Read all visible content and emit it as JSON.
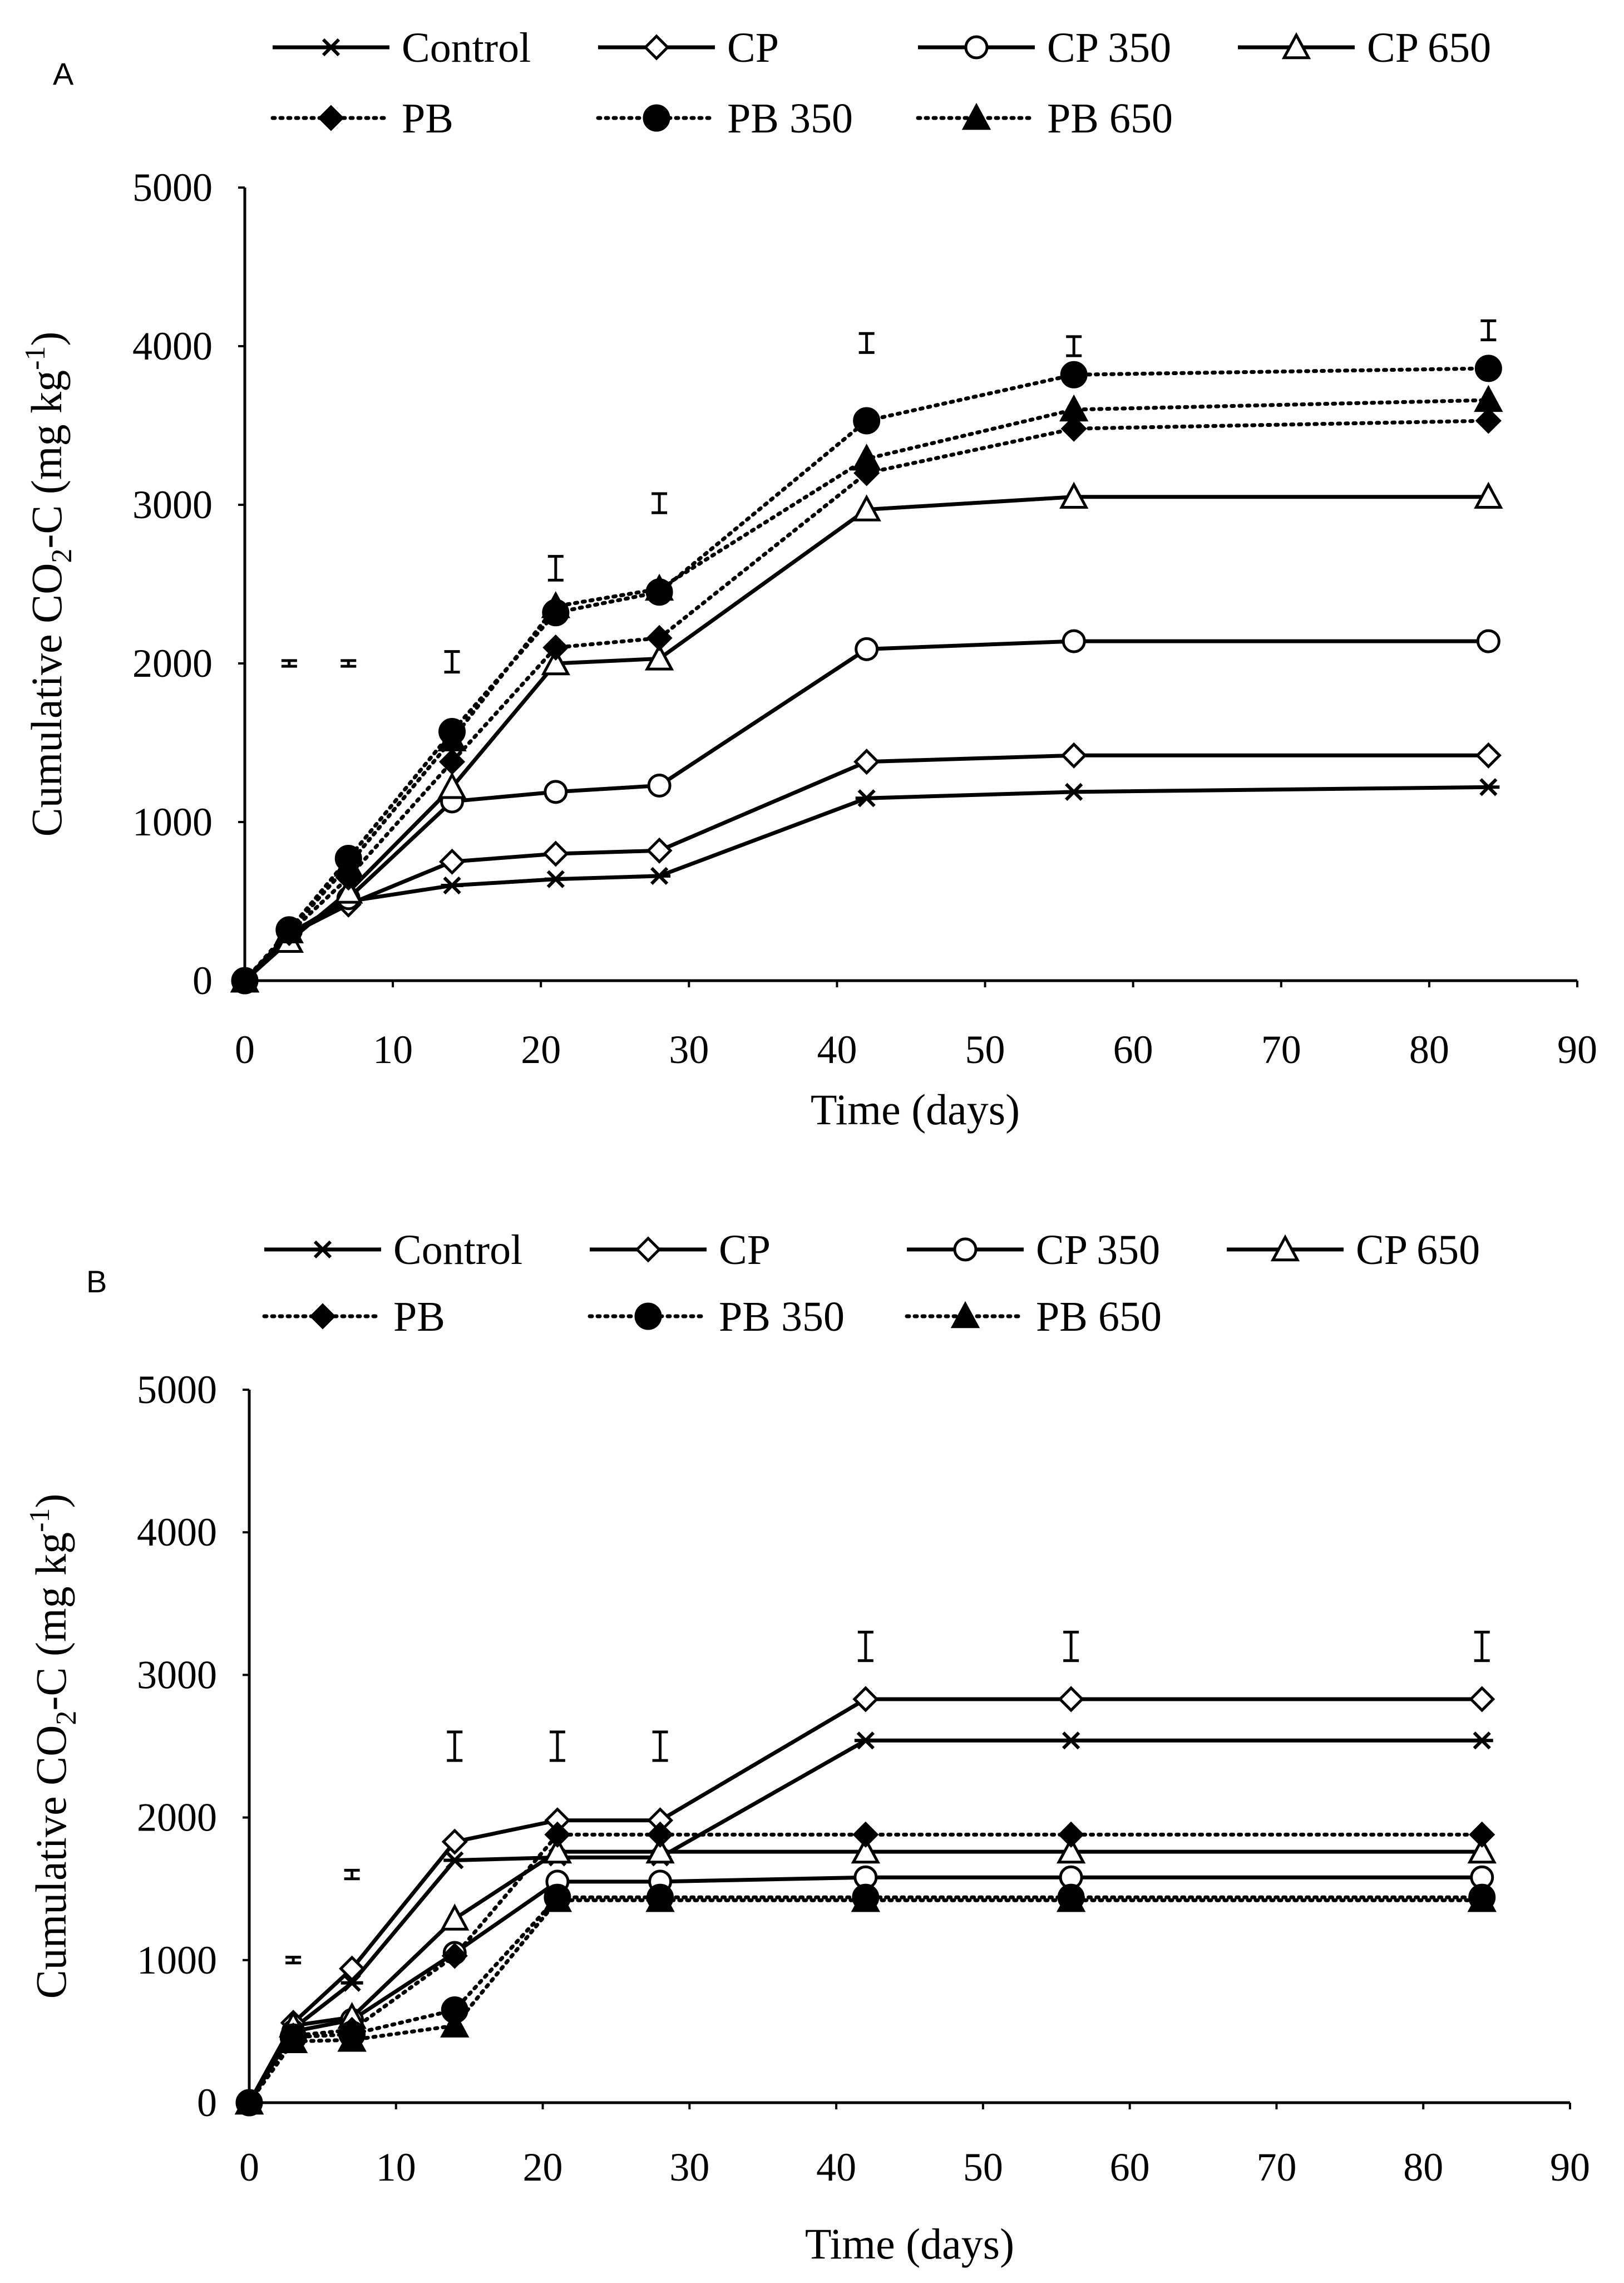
{
  "chart_data": [
    {
      "panel_label": "A",
      "type": "line",
      "xlabel": "Time (days)",
      "ylabel_main": "Cumulative CO",
      "ylabel_sub": "2",
      "ylabel_tail": "-C (mg kg",
      "ylabel_sup": "-1",
      "ylabel_end": ")",
      "xlim": [
        0,
        90
      ],
      "ylim": [
        0,
        5000
      ],
      "x_ticks": [
        0,
        10,
        20,
        30,
        40,
        50,
        60,
        70,
        80,
        90
      ],
      "y_ticks": [
        0,
        1000,
        2000,
        3000,
        4000,
        5000
      ],
      "x": [
        0,
        3,
        7,
        14,
        21,
        28,
        42,
        56,
        84
      ],
      "legend": "top",
      "grid": false,
      "series": [
        {
          "name": "Control",
          "style": "solid",
          "marker": "star",
          "values": [
            0,
            300,
            500,
            600,
            640,
            660,
            1150,
            1190,
            1220
          ]
        },
        {
          "name": "CP",
          "style": "solid",
          "marker": "diamond-open",
          "values": [
            0,
            290,
            480,
            750,
            800,
            820,
            1380,
            1420,
            1420
          ]
        },
        {
          "name": "CP 350",
          "style": "solid",
          "marker": "circle-open",
          "values": [
            0,
            290,
            520,
            1130,
            1190,
            1230,
            2090,
            2140,
            2140
          ]
        },
        {
          "name": "CP 650",
          "style": "solid",
          "marker": "triangle-open",
          "values": [
            0,
            250,
            560,
            1220,
            2000,
            2030,
            2970,
            3050,
            3050
          ]
        },
        {
          "name": "PB",
          "style": "dotted",
          "marker": "diamond-filled",
          "values": [
            0,
            300,
            650,
            1380,
            2100,
            2160,
            3200,
            3480,
            3530
          ]
        },
        {
          "name": "PB 350",
          "style": "dotted",
          "marker": "circle-filled",
          "values": [
            0,
            320,
            770,
            1570,
            2320,
            2450,
            3530,
            3820,
            3860
          ]
        },
        {
          "name": "PB 650",
          "style": "dotted",
          "marker": "triangle-filled",
          "values": [
            0,
            310,
            730,
            1520,
            2360,
            2470,
            3290,
            3600,
            3660
          ]
        }
      ],
      "error_bars": [
        {
          "x": 3,
          "center": 2000,
          "half": 18
        },
        {
          "x": 7,
          "center": 2000,
          "half": 18
        },
        {
          "x": 14,
          "center": 2010,
          "half": 65
        },
        {
          "x": 21,
          "center": 2600,
          "half": 75
        },
        {
          "x": 28,
          "center": 3010,
          "half": 60
        },
        {
          "x": 42,
          "center": 4020,
          "half": 60
        },
        {
          "x": 56,
          "center": 4000,
          "half": 60
        },
        {
          "x": 84,
          "center": 4100,
          "half": 60
        }
      ]
    },
    {
      "panel_label": "B",
      "type": "line",
      "xlabel": "Time (days)",
      "ylabel_main": "Cumulative CO",
      "ylabel_sub": "2",
      "ylabel_tail": "-C (mg kg",
      "ylabel_sup": "-1",
      "ylabel_end": ")",
      "xlim": [
        0,
        90
      ],
      "ylim": [
        0,
        5000
      ],
      "x_ticks": [
        0,
        10,
        20,
        30,
        40,
        50,
        60,
        70,
        80,
        90
      ],
      "y_ticks": [
        0,
        1000,
        2000,
        3000,
        4000,
        5000
      ],
      "x": [
        0,
        3,
        7,
        14,
        21,
        28,
        42,
        56,
        84
      ],
      "legend": "top",
      "grid": false,
      "series": [
        {
          "name": "Control",
          "style": "solid",
          "marker": "star",
          "values": [
            0,
            520,
            840,
            1700,
            1720,
            1720,
            2540,
            2540,
            2540
          ]
        },
        {
          "name": "CP",
          "style": "solid",
          "marker": "diamond-open",
          "values": [
            0,
            560,
            940,
            1830,
            1980,
            1980,
            2830,
            2830,
            2830
          ]
        },
        {
          "name": "CP 350",
          "style": "solid",
          "marker": "circle-open",
          "values": [
            0,
            500,
            580,
            1050,
            1550,
            1550,
            1580,
            1580,
            1580
          ]
        },
        {
          "name": "CP 650",
          "style": "solid",
          "marker": "triangle-open",
          "values": [
            0,
            540,
            600,
            1290,
            1760,
            1760,
            1760,
            1760,
            1760
          ]
        },
        {
          "name": "PB",
          "style": "dotted",
          "marker": "diamond-filled",
          "values": [
            0,
            470,
            510,
            1030,
            1880,
            1880,
            1880,
            1880,
            1880
          ]
        },
        {
          "name": "PB 350",
          "style": "dotted",
          "marker": "circle-filled",
          "values": [
            0,
            460,
            480,
            650,
            1440,
            1440,
            1440,
            1440,
            1440
          ]
        },
        {
          "name": "PB 650",
          "style": "dotted",
          "marker": "triangle-filled",
          "values": [
            0,
            430,
            440,
            540,
            1420,
            1420,
            1420,
            1420,
            1420
          ]
        }
      ],
      "error_bars": [
        {
          "x": 3,
          "center": 1000,
          "half": 20
        },
        {
          "x": 7,
          "center": 1600,
          "half": 30
        },
        {
          "x": 14,
          "center": 2500,
          "half": 100
        },
        {
          "x": 21,
          "center": 2500,
          "half": 100
        },
        {
          "x": 28,
          "center": 2500,
          "half": 100
        },
        {
          "x": 42,
          "center": 3200,
          "half": 100
        },
        {
          "x": 56,
          "center": 3200,
          "half": 100
        },
        {
          "x": 84,
          "center": 3200,
          "half": 100
        }
      ]
    }
  ]
}
